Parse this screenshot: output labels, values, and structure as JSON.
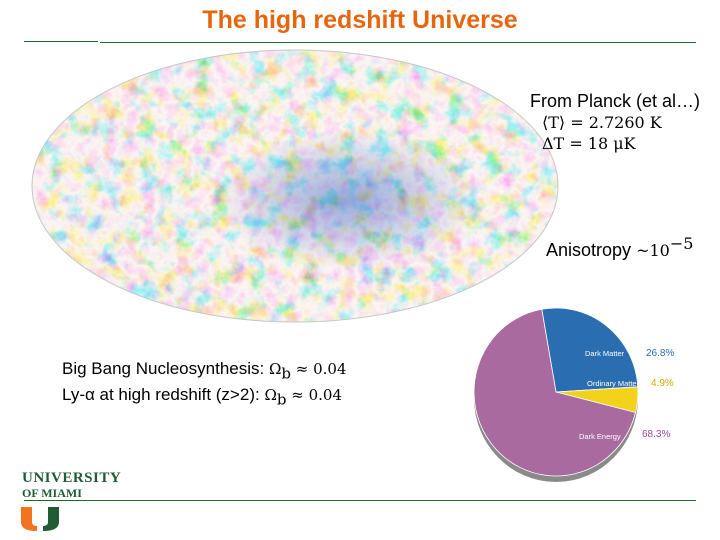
{
  "title": "The high redshift Universe",
  "planck": {
    "heading": "From Planck (et al…)",
    "mean_temp": "⟨T⟩ = 2.7260 K",
    "delta_temp": "ΔT = 18 μK"
  },
  "anisotropy": {
    "label": "Anisotropy",
    "approx": "~10",
    "exponent": "−5"
  },
  "constraints": {
    "bbn_label": "Big Bang Nucleosynthesis:",
    "bbn_value": "Ω",
    "bbn_sub": "b",
    "bbn_rest": " ≈ 0.04",
    "lya_label": "Ly-α at high redshift (z>2):",
    "lya_value": "Ω",
    "lya_sub": "b",
    "lya_rest": " ≈ 0.04"
  },
  "pie_chart": {
    "slices": [
      {
        "name": "Dark Matter",
        "pct_label": "26.8%",
        "value": 26.8,
        "color": "#2a6db0",
        "pct_color": "#2a6db0"
      },
      {
        "name": "Ordinary Matter",
        "pct_label": "4.9%",
        "value": 4.9,
        "color": "#f3d21b",
        "pct_color": "#d6a900"
      },
      {
        "name": "Dark Energy",
        "pct_label": "68.3%",
        "value": 68.3,
        "color": "#a96a9f",
        "pct_color": "#a04a96"
      }
    ]
  },
  "logo": {
    "line1": "UNIVERSITY",
    "line2": "OF MIAMI"
  },
  "colors": {
    "title": "#e8650f",
    "rule": "#1f6a2e",
    "um_green": "#1f5c35",
    "um_orange": "#f47321"
  }
}
